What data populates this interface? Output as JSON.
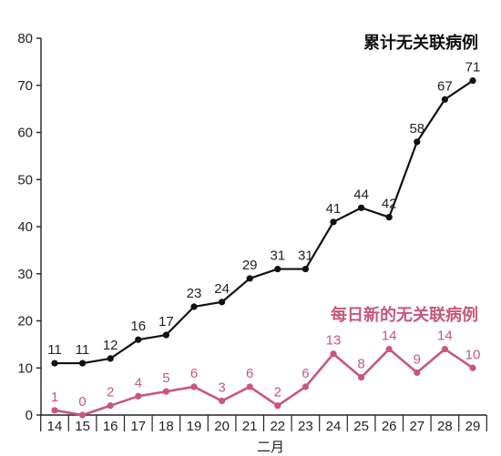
{
  "chart_data": {
    "type": "line",
    "x": [
      "14",
      "15",
      "16",
      "17",
      "18",
      "19",
      "20",
      "21",
      "22",
      "23",
      "24",
      "25",
      "26",
      "27",
      "28",
      "29"
    ],
    "xlabel": "二月",
    "ylim": [
      0,
      80
    ],
    "yticks": [
      0,
      10,
      20,
      30,
      40,
      50,
      60,
      70,
      80
    ],
    "grid": false,
    "series": [
      {
        "name": "累计无关联病例",
        "color": "#111111",
        "values": [
          11,
          11,
          12,
          16,
          17,
          23,
          24,
          29,
          31,
          31,
          41,
          44,
          42,
          58,
          67,
          71
        ]
      },
      {
        "name": "每日新的无关联病例",
        "color": "#c9577a",
        "values": [
          1,
          0,
          2,
          4,
          5,
          6,
          3,
          6,
          2,
          6,
          13,
          8,
          14,
          9,
          14,
          10
        ]
      }
    ]
  }
}
